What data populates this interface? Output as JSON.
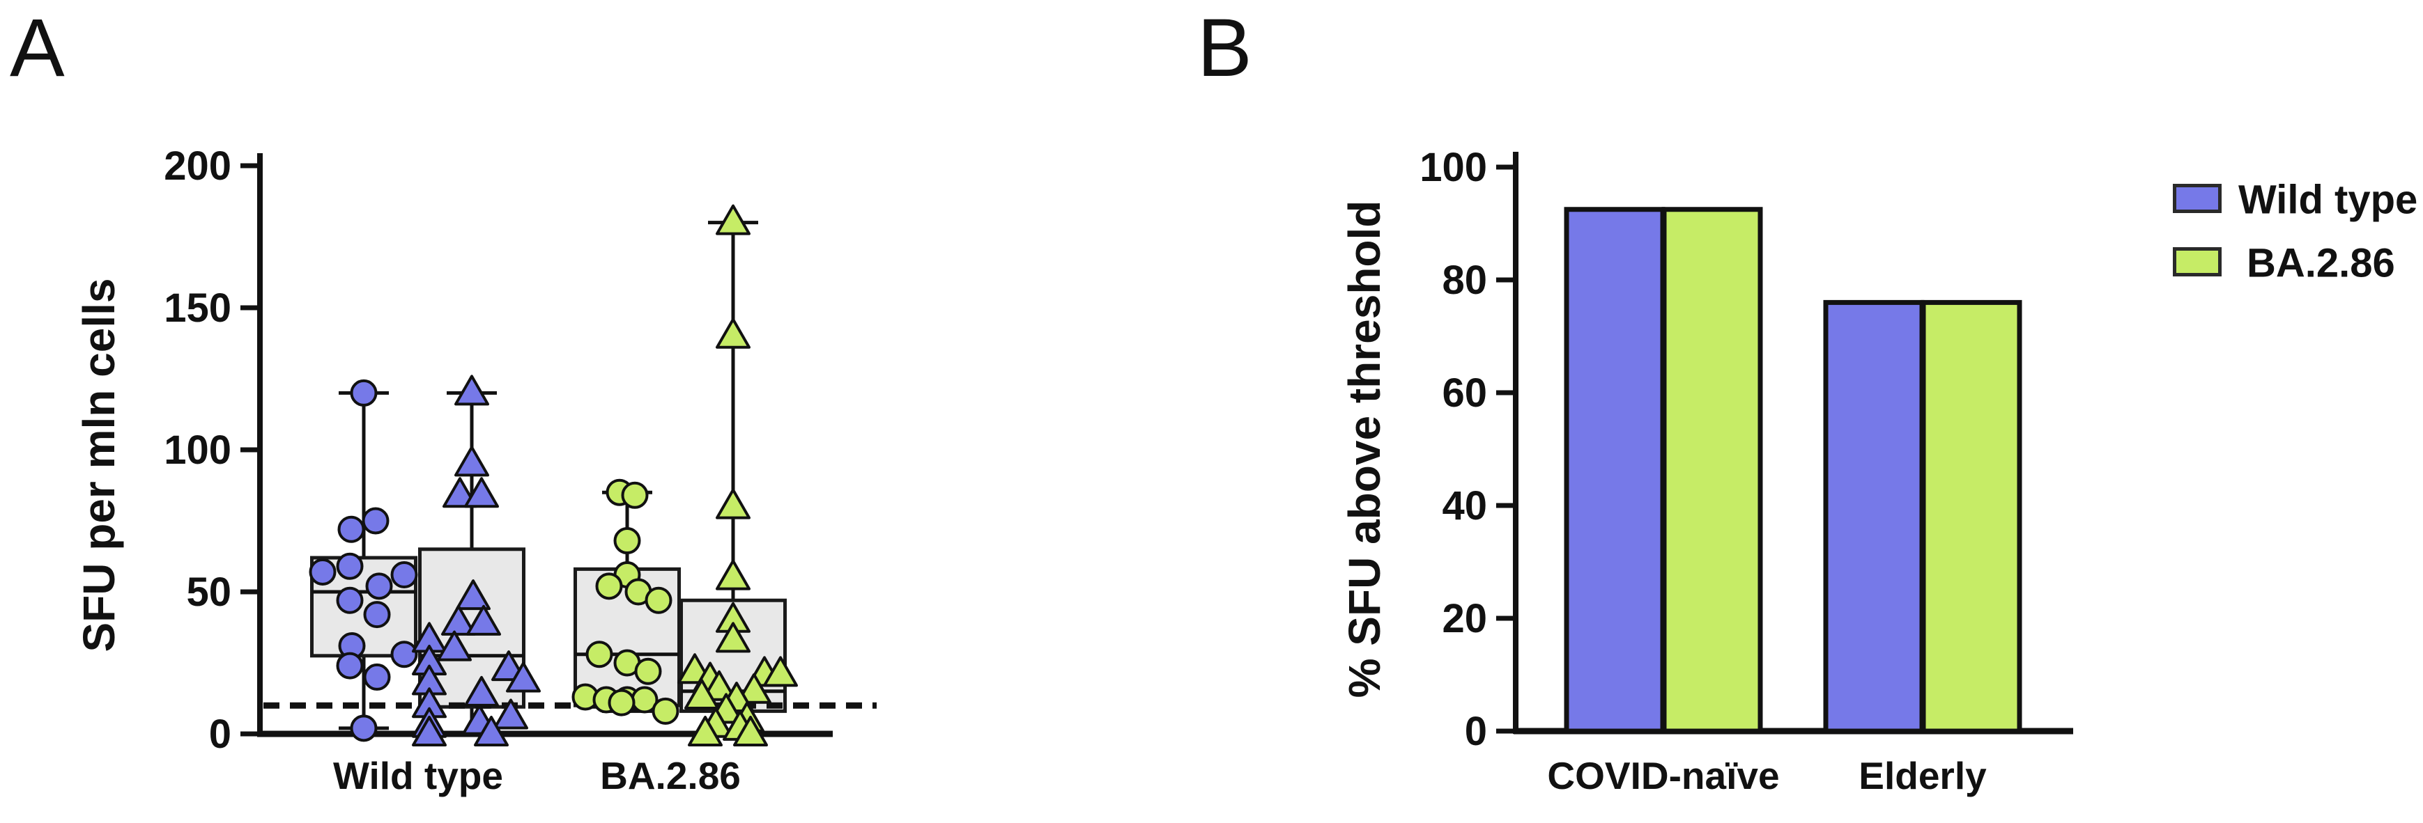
{
  "figure": {
    "panel_a_label": "A",
    "panel_b_label": "B"
  },
  "colors": {
    "wild_type_blue": "#7679e8",
    "ba286_green": "#c6ec66",
    "box_fill": "#e8e8e8",
    "box_border": "#1a1a1a",
    "axis_black": "#111111"
  },
  "chart_data": [
    {
      "type": "box-scatter",
      "panel": "A",
      "ylabel": "SFU per mln cells",
      "ylim": [
        0,
        200
      ],
      "yticks": [
        0,
        50,
        100,
        150,
        200
      ],
      "threshold_line": 10,
      "categories": [
        "Wild type",
        "BA.2.86"
      ],
      "points_format": "[x_offset_px_from_group_center, value]",
      "groups": [
        {
          "category": "Wild type",
          "marker": "circle",
          "color": "#7679e8",
          "box": {
            "q1": 27.5,
            "median": 50,
            "q3": 62,
            "whisker_low": 2,
            "whisker_high": 120
          },
          "points": [
            [
              0,
              120
            ],
            [
              17,
              75
            ],
            [
              -18,
              72
            ],
            [
              -20,
              59
            ],
            [
              -59,
              57
            ],
            [
              58,
              56
            ],
            [
              22,
              52
            ],
            [
              -20,
              47
            ],
            [
              19,
              42
            ],
            [
              -17,
              31
            ],
            [
              58,
              28
            ],
            [
              -20,
              24
            ],
            [
              19,
              20
            ],
            [
              0,
              2
            ]
          ]
        },
        {
          "category": "Wild type",
          "marker": "triangle",
          "color": "#7679e8",
          "box": {
            "q1": 9.5,
            "median": 27.5,
            "q3": 65,
            "whisker_low": 0,
            "whisker_high": 120
          },
          "points": [
            [
              0,
              120
            ],
            [
              0,
              95
            ],
            [
              -17,
              84
            ],
            [
              14,
              84
            ],
            [
              2,
              48
            ],
            [
              -19,
              39
            ],
            [
              17,
              39
            ],
            [
              -61,
              33
            ],
            [
              -25,
              30
            ],
            [
              -61,
              25
            ],
            [
              53,
              23
            ],
            [
              74,
              19
            ],
            [
              -61,
              18
            ],
            [
              14,
              14
            ],
            [
              -61,
              10
            ],
            [
              56,
              6
            ],
            [
              11,
              4
            ],
            [
              -61,
              3
            ],
            [
              -61,
              0
            ],
            [
              28,
              0
            ]
          ]
        },
        {
          "category": "BA.2.86",
          "marker": "circle",
          "color": "#c6ec66",
          "box": {
            "q1": 10,
            "median": 28,
            "q3": 58,
            "whisker_low": 8,
            "whisker_high": 85
          },
          "points": [
            [
              -11,
              85
            ],
            [
              11,
              84
            ],
            [
              0,
              68
            ],
            [
              0,
              56
            ],
            [
              -26,
              52
            ],
            [
              16,
              50
            ],
            [
              45,
              47
            ],
            [
              -40,
              28
            ],
            [
              0,
              25
            ],
            [
              30,
              22
            ],
            [
              -60,
              13
            ],
            [
              -30,
              12
            ],
            [
              0,
              12
            ],
            [
              25,
              12
            ],
            [
              -8,
              11
            ],
            [
              55,
              8
            ]
          ]
        },
        {
          "category": "BA.2.86",
          "marker": "triangle",
          "color": "#c6ec66",
          "box": {
            "q1": 8,
            "median": 15,
            "q3": 47,
            "whisker_low": 0,
            "whisker_high": 180
          },
          "points": [
            [
              0,
              180
            ],
            [
              0,
              140
            ],
            [
              0,
              80
            ],
            [
              0,
              55
            ],
            [
              0,
              40
            ],
            [
              0,
              33
            ],
            [
              -55,
              22
            ],
            [
              45,
              21
            ],
            [
              68,
              21
            ],
            [
              -33,
              19
            ],
            [
              -20,
              16
            ],
            [
              30,
              15
            ],
            [
              -45,
              13
            ],
            [
              5,
              12
            ],
            [
              -10,
              8
            ],
            [
              20,
              5
            ],
            [
              -25,
              3
            ],
            [
              10,
              2
            ],
            [
              -40,
              0
            ],
            [
              25,
              0
            ]
          ]
        }
      ]
    },
    {
      "type": "bar",
      "panel": "B",
      "ylabel": "% SFU above threshold",
      "ylim": [
        0,
        100
      ],
      "yticks": [
        0,
        20,
        40,
        60,
        80,
        100
      ],
      "categories": [
        "COVID-naïve",
        "Elderly"
      ],
      "series": [
        {
          "name": "Wild type",
          "color": "#7679e8",
          "values": [
            92.5,
            76
          ]
        },
        {
          "name": "BA.2.86",
          "color": "#c6ec66",
          "values": [
            92.5,
            76
          ]
        }
      ],
      "legend_position": "top-right"
    }
  ]
}
